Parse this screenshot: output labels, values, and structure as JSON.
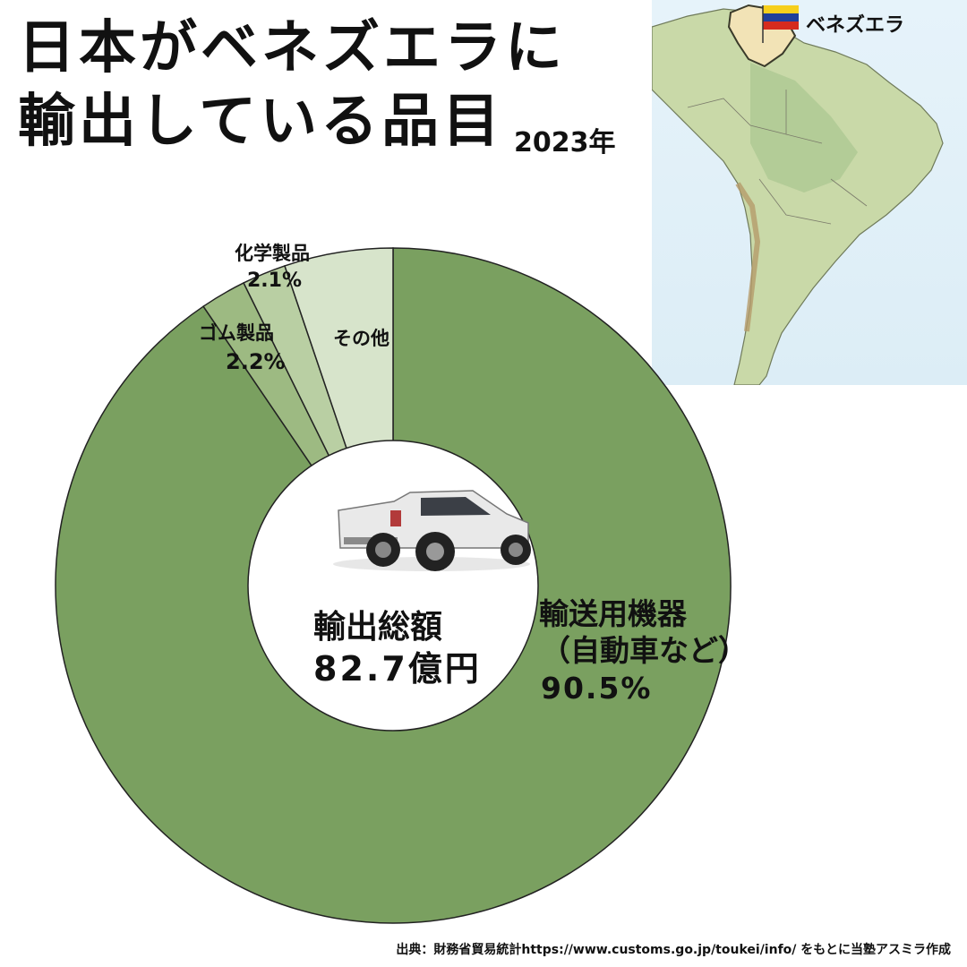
{
  "title": {
    "line1": "日本がベネズエラに",
    "line2": "輸出している品目",
    "year": "2023年"
  },
  "map": {
    "label": "ベネズエラ",
    "flag_colors": [
      "#f6cf1c",
      "#1f3f9a",
      "#d52b1e"
    ]
  },
  "center": {
    "label": "輸出総額",
    "value": "82.7億円"
  },
  "chart_data": {
    "type": "donut",
    "slices": [
      {
        "label": "輸送用機器",
        "sublabel": "（自動車など）",
        "percent_text": "90.5%",
        "value": 90.5,
        "color": "#7aa060"
      },
      {
        "label": "ゴム製品",
        "percent_text": "2.2%",
        "value": 2.2,
        "color": "#9dba82"
      },
      {
        "label": "化学製品",
        "percent_text": "2.1%",
        "value": 2.1,
        "color": "#b9cfa3"
      },
      {
        "label": "その他",
        "percent_text": "",
        "value": 5.2,
        "color": "#d7e4cb"
      }
    ]
  },
  "source": "出典：財務省貿易統計https://www.customs.go.jp/toukei/info/  をもとに当塾アスミラ作成"
}
